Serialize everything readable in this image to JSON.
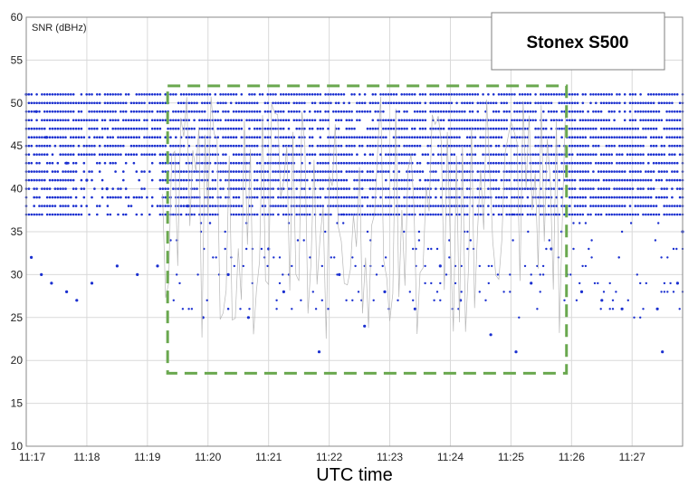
{
  "chart_data": {
    "type": "scatter",
    "title": "",
    "xlabel": "UTC time",
    "ylabel": "SNR (dBHz)",
    "legend_box": "Stonex S500",
    "x_ticks": [
      "11:17",
      "11:18",
      "11:19",
      "11:20",
      "11:21",
      "11:22",
      "11:23",
      "11:24",
      "11:25",
      "11:26",
      "11:27"
    ],
    "y_ticks": [
      10,
      15,
      20,
      25,
      30,
      35,
      40,
      45,
      50,
      55,
      60
    ],
    "xlim": [
      "11:17:00",
      "11:27:50"
    ],
    "ylim": [
      10,
      60
    ],
    "grid": true,
    "marker_color": "#1a2fd0",
    "line_color": "#b8b8b8",
    "highlight_region": {
      "style": "dashed rectangle",
      "color": "#6aa84f",
      "x_start": "11:19:20",
      "x_end": "11:25:55",
      "y_min": 18.5,
      "y_max": 52
    },
    "series": [
      {
        "values": [
          {
            "time": "11:17:00",
            "snr": 51
          },
          {
            "time": "11:17:10",
            "snr": 49
          },
          {
            "time": "11:17:20",
            "snr": 46
          },
          {
            "time": "11:17:40",
            "snr": 43
          },
          {
            "time": "11:18:00",
            "snr": 41
          },
          {
            "time": "11:18:20",
            "snr": 40
          },
          {
            "time": "11:17:05",
            "snr": 32
          },
          {
            "time": "11:17:15",
            "snr": 30
          },
          {
            "time": "11:17:25",
            "snr": 29
          },
          {
            "time": "11:17:40",
            "snr": 28
          },
          {
            "time": "11:17:50",
            "snr": 27
          },
          {
            "time": "11:18:05",
            "snr": 29
          },
          {
            "time": "11:18:30",
            "snr": 31
          },
          {
            "time": "11:18:50",
            "snr": 30
          },
          {
            "time": "11:19:10",
            "snr": 31
          },
          {
            "time": "11:19:40",
            "snr": 38
          },
          {
            "time": "11:19:55",
            "snr": 25
          },
          {
            "time": "11:20:20",
            "snr": 30
          },
          {
            "time": "11:20:40",
            "snr": 25
          },
          {
            "time": "11:21:00",
            "snr": 33
          },
          {
            "time": "11:21:15",
            "snr": 28
          },
          {
            "time": "11:21:50",
            "snr": 21
          },
          {
            "time": "11:22:10",
            "snr": 30
          },
          {
            "time": "11:22:35",
            "snr": 24
          },
          {
            "time": "11:22:55",
            "snr": 28
          },
          {
            "time": "11:23:25",
            "snr": 26
          },
          {
            "time": "11:23:50",
            "snr": 31
          },
          {
            "time": "11:24:10",
            "snr": 27
          },
          {
            "time": "11:24:40",
            "snr": 23
          },
          {
            "time": "11:25:05",
            "snr": 21
          },
          {
            "time": "11:25:20",
            "snr": 29
          },
          {
            "time": "11:25:40",
            "snr": 33
          },
          {
            "time": "11:26:10",
            "snr": 28
          },
          {
            "time": "11:26:30",
            "snr": 27
          },
          {
            "time": "11:26:50",
            "snr": 26
          },
          {
            "time": "11:27:25",
            "snr": 26
          },
          {
            "time": "11:27:30",
            "snr": 21
          },
          {
            "time": "11:27:45",
            "snr": 29
          },
          {
            "time": "11:27:50",
            "snr": 35
          }
        ]
      }
    ]
  }
}
